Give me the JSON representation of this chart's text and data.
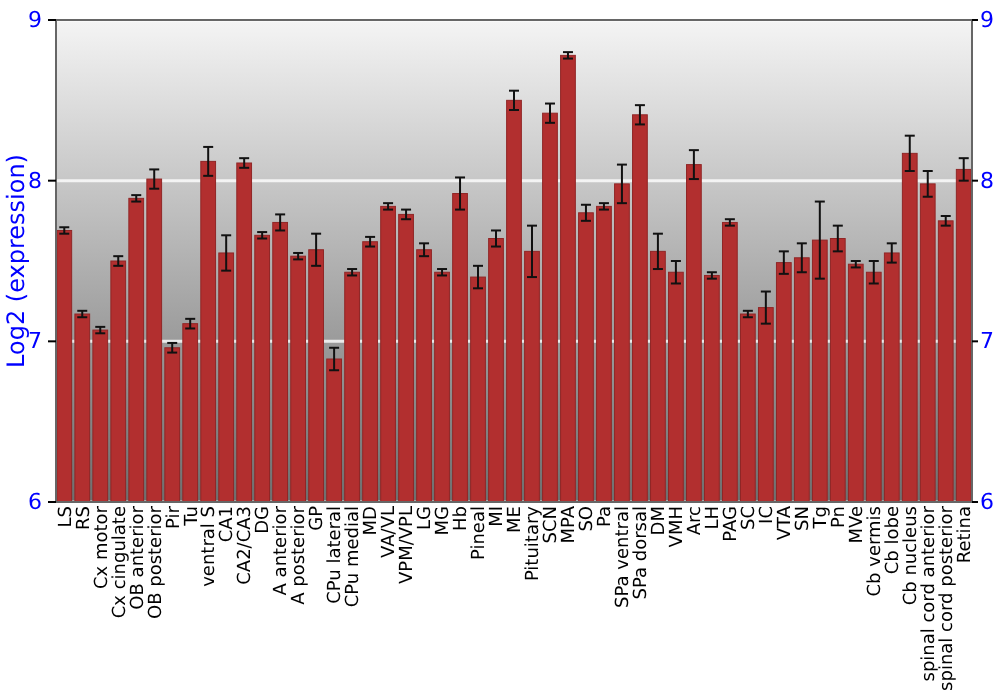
{
  "chart_data": {
    "type": "bar",
    "ylabel": "Log2 (expression)",
    "categories": [
      "LS",
      "RS",
      "Cx motor",
      "Cx cingulate",
      "OB anterior",
      "OB posterior",
      "Pir",
      "Tu",
      "ventral S",
      "CA1",
      "CA2/CA3",
      "DG",
      "A anterior",
      "A posterior",
      "GP",
      "CPu lateral",
      "CPu medial",
      "MD",
      "VA/VL",
      "VPM/VPL",
      "LG",
      "MG",
      "Hb",
      "Pineal",
      "MI",
      "ME",
      "Pituitary",
      "SCN",
      "MPA",
      "SO",
      "Pa",
      "SPa ventral",
      "SPa dorsal",
      "DM",
      "VMH",
      "Arc",
      "LH",
      "PAG",
      "SC",
      "IC",
      "VTA",
      "SN",
      "Tg",
      "Pn",
      "MVe",
      "Cb vermis",
      "Cb lobe",
      "Cb nucleus",
      "spinal cord anterior",
      "spinal cord posterior",
      "Retina"
    ],
    "values": [
      7.69,
      7.17,
      7.07,
      7.5,
      7.89,
      8.01,
      6.96,
      7.11,
      8.12,
      7.55,
      8.11,
      7.66,
      7.74,
      7.53,
      7.57,
      6.89,
      7.43,
      7.62,
      7.84,
      7.79,
      7.57,
      7.43,
      7.92,
      7.4,
      7.64,
      8.5,
      7.56,
      8.42,
      8.78,
      7.8,
      7.84,
      7.98,
      8.41,
      7.56,
      7.43,
      8.1,
      7.41,
      7.74,
      7.17,
      7.21,
      7.49,
      7.52,
      7.63,
      7.64,
      7.48,
      7.43,
      7.55,
      8.17,
      7.98,
      7.75,
      8.07
    ],
    "errors": [
      0.02,
      0.02,
      0.02,
      0.03,
      0.02,
      0.06,
      0.03,
      0.03,
      0.09,
      0.11,
      0.03,
      0.02,
      0.05,
      0.02,
      0.1,
      0.07,
      0.02,
      0.03,
      0.02,
      0.03,
      0.04,
      0.02,
      0.1,
      0.07,
      0.05,
      0.06,
      0.16,
      0.06,
      0.02,
      0.05,
      0.02,
      0.12,
      0.06,
      0.11,
      0.07,
      0.09,
      0.02,
      0.02,
      0.02,
      0.1,
      0.07,
      0.09,
      0.24,
      0.08,
      0.02,
      0.07,
      0.06,
      0.11,
      0.08,
      0.03,
      0.07
    ],
    "color": "#b22f2f",
    "ylim": [
      6,
      9
    ],
    "yticks": [
      6,
      7,
      8,
      9
    ],
    "y2lim": [
      6,
      9
    ],
    "y2ticks": [
      6,
      7,
      8,
      9
    ],
    "grid": "y"
  }
}
